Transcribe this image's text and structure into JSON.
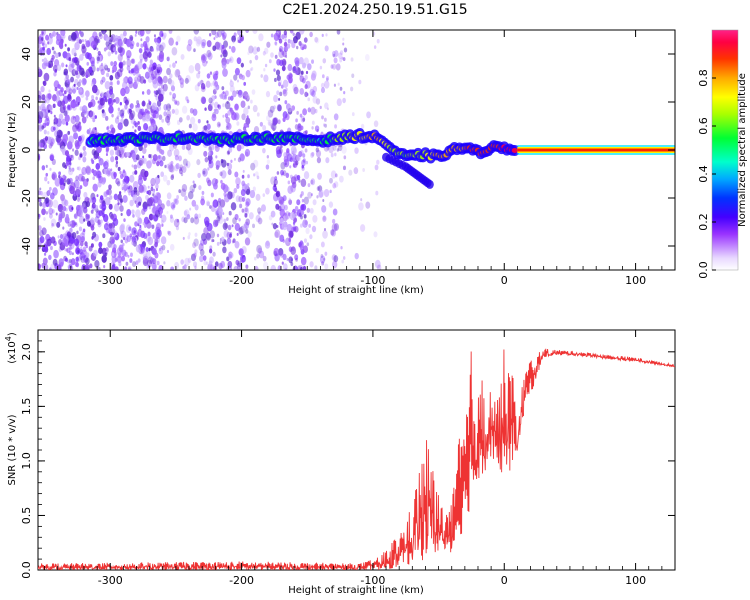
{
  "title": "C2E1.2024.250.19.51.G15",
  "chart_data": [
    {
      "type": "heatmap",
      "xlabel": "Height of straight line (km)",
      "ylabel": "Frequency (Hz)",
      "xlim": [
        -355,
        130
      ],
      "ylim": [
        -50,
        50
      ],
      "xticks": [
        -300,
        -200,
        -100,
        0,
        100
      ],
      "yticks": [
        -40,
        -20,
        0,
        20,
        40
      ],
      "colorbar": {
        "label": "Normalized spectral amplitude",
        "range": [
          0.0,
          1.0
        ],
        "ticks": [
          0.0,
          0.2,
          0.4,
          0.6,
          0.8
        ]
      },
      "signal_track": [
        {
          "x": -315,
          "y": 4,
          "amp": 0.45
        },
        {
          "x": -250,
          "y": 5,
          "amp": 0.5
        },
        {
          "x": -230,
          "y": 5,
          "amp": 0.55
        },
        {
          "x": -210,
          "y": 4,
          "amp": 0.5
        },
        {
          "x": -190,
          "y": 5,
          "amp": 0.5
        },
        {
          "x": -175,
          "y": 5,
          "amp": 0.55
        },
        {
          "x": -140,
          "y": 4,
          "amp": 0.45
        },
        {
          "x": -125,
          "y": 5,
          "amp": 0.6
        },
        {
          "x": -110,
          "y": 6,
          "amp": 0.7
        },
        {
          "x": -95,
          "y": 5,
          "amp": 0.75
        },
        {
          "x": -85,
          "y": 0,
          "amp": 0.6
        },
        {
          "x": -75,
          "y": -3,
          "amp": 0.55
        },
        {
          "x": -60,
          "y": -2,
          "amp": 0.65
        },
        {
          "x": -50,
          "y": -3,
          "amp": 0.75
        },
        {
          "x": -40,
          "y": 0,
          "amp": 0.8
        },
        {
          "x": -30,
          "y": 1,
          "amp": 0.8
        },
        {
          "x": -20,
          "y": -1,
          "amp": 0.85
        },
        {
          "x": -10,
          "y": 1,
          "amp": 0.85
        },
        {
          "x": 0,
          "y": 1,
          "amp": 0.9
        },
        {
          "x": 10,
          "y": 0,
          "amp": 0.95
        },
        {
          "x": 130,
          "y": 0,
          "amp": 1.0
        }
      ],
      "branch_track": [
        {
          "x": -90,
          "y": -3
        },
        {
          "x": -75,
          "y": -7
        },
        {
          "x": -65,
          "y": -11
        },
        {
          "x": -55,
          "y": -15
        }
      ]
    },
    {
      "type": "line",
      "xlabel": "Height of straight line (km)",
      "ylabel": "SNR (10 * v/v)",
      "multiplier": "(x10",
      "multiplier_exp": "4",
      "xlim": [
        -355,
        130
      ],
      "ylim": [
        0,
        2.2
      ],
      "xticks": [
        -300,
        -200,
        -100,
        0,
        100
      ],
      "yticks": [
        0.0,
        0.5,
        1.0,
        1.5,
        2.0
      ],
      "color": "#ee3333",
      "envelope": {
        "x": [
          -355,
          -200,
          -110,
          -95,
          -80,
          -70,
          -60,
          -50,
          -45,
          -40,
          -35,
          -30,
          -25,
          -20,
          -15,
          -10,
          -5,
          0,
          5,
          10,
          15,
          20,
          30,
          40,
          60,
          80,
          100,
          130
        ],
        "upper": [
          0.06,
          0.08,
          0.06,
          0.12,
          0.35,
          0.6,
          1.3,
          0.7,
          0.55,
          0.6,
          1.2,
          1.4,
          2.05,
          1.6,
          1.9,
          1.9,
          1.6,
          2.05,
          2.05,
          1.3,
          1.85,
          1.95,
          2.03,
          2.02,
          2.0,
          1.97,
          1.95,
          1.88
        ],
        "lower": [
          0.0,
          0.0,
          0.0,
          0.0,
          0.02,
          0.05,
          0.1,
          0.15,
          0.2,
          0.15,
          0.25,
          0.4,
          0.6,
          0.8,
          0.9,
          1.0,
          0.9,
          0.8,
          0.9,
          1.1,
          1.4,
          1.6,
          1.95,
          1.97,
          1.96,
          1.93,
          1.91,
          1.86
        ]
      }
    }
  ]
}
